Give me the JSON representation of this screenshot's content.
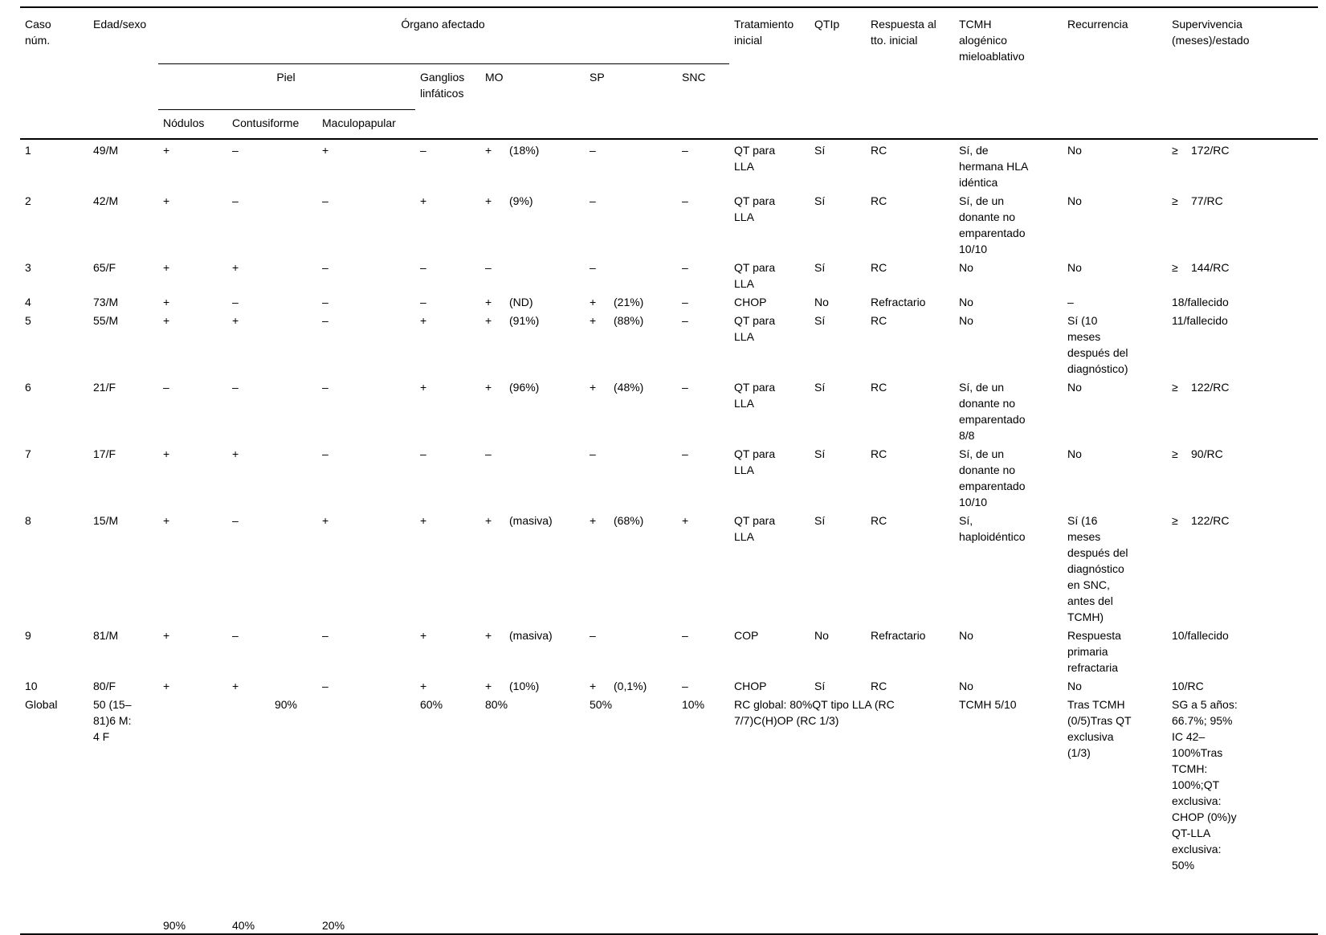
{
  "columns": {
    "caso": "Caso\nnúm.",
    "edad": "Edad/sexo",
    "organo": "Órgano afectado",
    "piel": "Piel",
    "nodulos": "Nódulos",
    "contusiforme": "Contusiforme",
    "maculopapular": "Maculopapular",
    "ganglios": "Ganglios\nlinfáticos",
    "mo": "MO",
    "sp": "SP",
    "snc": "SNC",
    "tratamiento": "Tratamiento\ninicial",
    "qtip": "QTIp",
    "respuesta": "Respuesta al\ntto. inicial",
    "tcmh": "TCMH\nalogénico\nmieloablativo",
    "recurrencia": "Recurrencia",
    "supervivencia": "Supervivencia\n(meses)/estado"
  },
  "rows": [
    {
      "caso": "1",
      "edad": "49/M",
      "nodulos": "+",
      "contusiforme": "–",
      "maculopapular": "+",
      "ganglios": "–",
      "mo_sign": "+",
      "mo_val": "(18%)",
      "sp_sign": "–",
      "sp_val": "",
      "snc": "–",
      "tratamiento": "QT para\nLLA",
      "qtip": "Sí",
      "respuesta": "RC",
      "tcmh": "Sí, de\nhermana HLA\nidéntica",
      "recurrencia": "No",
      "sup_sign": "≥",
      "sup_val": "172/RC"
    },
    {
      "caso": "2",
      "edad": "42/M",
      "nodulos": "+",
      "contusiforme": "–",
      "maculopapular": "–",
      "ganglios": "+",
      "mo_sign": "+",
      "mo_val": "(9%)",
      "sp_sign": "–",
      "sp_val": "",
      "snc": "–",
      "tratamiento": "QT para\nLLA",
      "qtip": "Sí",
      "respuesta": "RC",
      "tcmh": "Sí, de un\ndonante no\nemparentado\n10/10",
      "recurrencia": "No",
      "sup_sign": "≥",
      "sup_val": "77/RC"
    },
    {
      "caso": "3",
      "edad": "65/F",
      "nodulos": "+",
      "contusiforme": "+",
      "maculopapular": "–",
      "ganglios": "–",
      "mo_sign": "–",
      "mo_val": "",
      "sp_sign": "–",
      "sp_val": "",
      "snc": "–",
      "tratamiento": "QT para\nLLA",
      "qtip": "Sí",
      "respuesta": "RC",
      "tcmh": "No",
      "recurrencia": "No",
      "sup_sign": "≥",
      "sup_val": "144/RC"
    },
    {
      "caso": "4",
      "edad": "73/M",
      "nodulos": "+",
      "contusiforme": "–",
      "maculopapular": "–",
      "ganglios": "–",
      "mo_sign": "+",
      "mo_val": "(ND)",
      "sp_sign": "+",
      "sp_val": "(21%)",
      "snc": "–",
      "tratamiento": "CHOP",
      "qtip": "No",
      "respuesta": "Refractario",
      "tcmh": "No",
      "recurrencia": "–",
      "sup_sign": "",
      "sup_val": "18/fallecido"
    },
    {
      "caso": "5",
      "edad": "55/M",
      "nodulos": "+",
      "contusiforme": "+",
      "maculopapular": "–",
      "ganglios": "+",
      "mo_sign": "+",
      "mo_val": "(91%)",
      "sp_sign": "+",
      "sp_val": "(88%)",
      "snc": "–",
      "tratamiento": "QT para\nLLA",
      "qtip": "Sí",
      "respuesta": "RC",
      "tcmh": "No",
      "recurrencia": "Sí (10\nmeses\ndespués del\ndiagnóstico)",
      "sup_sign": "",
      "sup_val": "11/fallecido"
    },
    {
      "caso": "6",
      "edad": "21/F",
      "nodulos": "–",
      "contusiforme": "–",
      "maculopapular": "–",
      "ganglios": "+",
      "mo_sign": "+",
      "mo_val": "(96%)",
      "sp_sign": "+",
      "sp_val": "(48%)",
      "snc": "–",
      "tratamiento": "QT para\nLLA",
      "qtip": "Sí",
      "respuesta": "RC",
      "tcmh": "Sí, de un\ndonante no\nemparentado\n8/8",
      "recurrencia": "No",
      "sup_sign": "≥",
      "sup_val": "122/RC"
    },
    {
      "caso": "7",
      "edad": "17/F",
      "nodulos": "+",
      "contusiforme": "+",
      "maculopapular": "–",
      "ganglios": "–",
      "mo_sign": "–",
      "mo_val": "",
      "sp_sign": "–",
      "sp_val": "",
      "snc": "–",
      "tratamiento": "QT para\nLLA",
      "qtip": "Sí",
      "respuesta": "RC",
      "tcmh": "Sí, de un\ndonante no\nemparentado\n10/10",
      "recurrencia": "No",
      "sup_sign": "≥",
      "sup_val": "90/RC"
    },
    {
      "caso": "8",
      "edad": "15/M",
      "nodulos": "+",
      "contusiforme": "–",
      "maculopapular": "+",
      "ganglios": "+",
      "mo_sign": "+",
      "mo_val": "(masiva)",
      "sp_sign": "+",
      "sp_val": "(68%)",
      "snc": "+",
      "tratamiento": "QT para\nLLA",
      "qtip": "Sí",
      "respuesta": "RC",
      "tcmh": "Sí,\nhaploidéntico",
      "recurrencia": "Sí (16\nmeses\ndespués del\ndiagnóstico\nen SNC,\nantes del\nTCMH)",
      "sup_sign": "≥",
      "sup_val": "122/RC"
    },
    {
      "caso": "9",
      "edad": "81/M",
      "nodulos": "+",
      "contusiforme": "–",
      "maculopapular": "–",
      "ganglios": "+",
      "mo_sign": "+",
      "mo_val": "(masiva)",
      "sp_sign": "–",
      "sp_val": "",
      "snc": "–",
      "tratamiento": "COP",
      "qtip": "No",
      "respuesta": "Refractario",
      "tcmh": "No",
      "recurrencia": "Respuesta\nprimaria\nrefractaria",
      "sup_sign": "",
      "sup_val": "10/fallecido"
    },
    {
      "caso": "10",
      "edad": "80/F",
      "nodulos": "+",
      "contusiforme": "+",
      "maculopapular": "–",
      "ganglios": "+",
      "mo_sign": "+",
      "mo_val": "(10%)",
      "sp_sign": "+",
      "sp_val": "(0,1%)",
      "snc": "–",
      "tratamiento": "CHOP",
      "qtip": "Sí",
      "respuesta": "RC",
      "tcmh": "No",
      "recurrencia": "No",
      "sup_sign": "",
      "sup_val": "10/RC"
    }
  ],
  "summary": {
    "caso": "Global",
    "edad": "50 (15–\n81)6 M:\n4 F",
    "piel": "90%",
    "ganglios": "60%",
    "mo": "80%",
    "sp": "50%",
    "snc": "10%",
    "tratamiento": "RC global: 80%QT tipo LLA (RC\n7/7)C(H)OP (RC 1/3)",
    "tcmh": "TCMH 5/10",
    "recurrencia": "Tras TCMH\n(0/5)Tras QT\nexclusiva\n(1/3)",
    "supervivencia": "SG a 5 años:\n66.7%; 95%\nIC 42–\n100%Tras\nTCMH:\n100%;QT\nexclusiva:\nCHOP (0%)y\nQT-LLA\nexclusiva:\n50%"
  },
  "footer": {
    "nodulos": "90%",
    "contusiforme": "40%",
    "maculopapular": "20%"
  }
}
